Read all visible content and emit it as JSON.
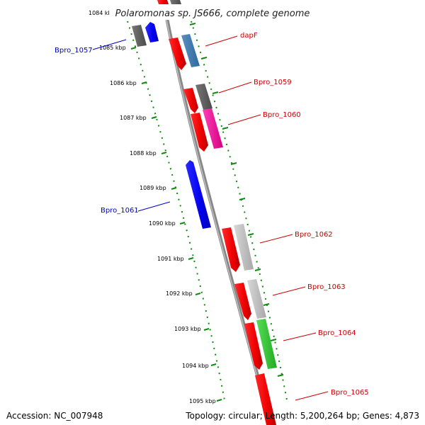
{
  "title": "Polaromonas sp. JS666, complete genome",
  "ticks": [
    "1084 kbp",
    "1085 kbp",
    "1086 kbp",
    "1087 kbp",
    "1088 kbp",
    "1089 kbp",
    "1090 kbp",
    "1091 kbp",
    "1092 kbp",
    "1093 kbp",
    "1094 kbp",
    "1095 kbp"
  ],
  "genes": [
    {
      "label": "Bpro_1057",
      "strand": "reverse",
      "color": "#0000cc"
    },
    {
      "label": "dapF",
      "strand": "forward",
      "color": "#cc0000"
    },
    {
      "label": "Bpro_1059",
      "strand": "forward",
      "color": "#cc0000"
    },
    {
      "label": "Bpro_1060",
      "strand": "forward",
      "color": "#cc0000"
    },
    {
      "label": "Bpro_1061",
      "strand": "reverse",
      "color": "#0000cc"
    },
    {
      "label": "Bpro_1062",
      "strand": "forward",
      "color": "#cc0000"
    },
    {
      "label": "Bpro_1063",
      "strand": "forward",
      "color": "#cc0000"
    },
    {
      "label": "Bpro_1064",
      "strand": "forward",
      "color": "#cc0000"
    },
    {
      "label": "Bpro_1065",
      "strand": "forward",
      "color": "#cc0000"
    }
  ],
  "footer": {
    "accession": "Accession: NC_007948",
    "stats": "Topology: circular; Length: 5,200,264 bp; Genes: 4,873"
  }
}
